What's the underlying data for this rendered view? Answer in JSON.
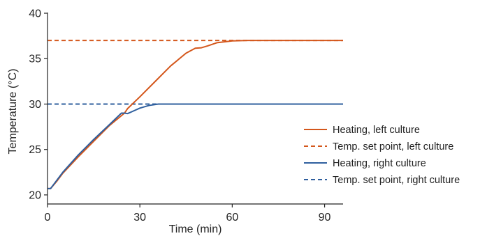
{
  "chart_data": {
    "type": "line",
    "title": "",
    "xlabel": "Time (min)",
    "ylabel": "Temperature (°C)",
    "xlim": [
      0,
      96
    ],
    "ylim": [
      19,
      40
    ],
    "xticks": [
      0,
      30,
      60,
      90
    ],
    "yticks": [
      20,
      25,
      30,
      35,
      40
    ],
    "grid": false,
    "legend_position": "right",
    "series": [
      {
        "name": "Heating, left culture",
        "color": "#d4571c",
        "dash": "solid",
        "x": [
          0,
          1,
          3,
          5,
          10,
          15,
          20,
          25,
          26,
          30,
          35,
          40,
          45,
          48,
          50,
          52,
          55,
          60,
          65,
          70,
          80,
          90,
          96
        ],
        "y": [
          20.7,
          20.7,
          21.5,
          22.4,
          24.2,
          25.9,
          27.6,
          29.0,
          29.5,
          30.8,
          32.5,
          34.2,
          35.6,
          36.15,
          36.2,
          36.4,
          36.75,
          36.95,
          37.0,
          37.0,
          37.0,
          37.0,
          37.0
        ]
      },
      {
        "name": "Temp. set point, left culture",
        "color": "#d4571c",
        "dash": "dashed",
        "x": [
          0,
          96
        ],
        "y": [
          37,
          37
        ]
      },
      {
        "name": "Heating, right culture",
        "color": "#2f5f9e",
        "dash": "solid",
        "x": [
          0,
          1,
          3,
          5,
          10,
          15,
          20,
          24,
          25,
          26,
          28,
          30,
          33,
          36,
          40,
          50,
          60,
          70,
          80,
          90,
          96
        ],
        "y": [
          20.7,
          20.7,
          21.6,
          22.5,
          24.4,
          26.1,
          27.7,
          29.0,
          29.0,
          28.95,
          29.25,
          29.55,
          29.85,
          30.0,
          30.0,
          30.0,
          30.0,
          30.0,
          30.0,
          30.0,
          30.0
        ]
      },
      {
        "name": "Temp. set point, right culture",
        "color": "#2f5f9e",
        "dash": "dashed",
        "x": [
          0,
          96
        ],
        "y": [
          30,
          30
        ]
      }
    ]
  }
}
